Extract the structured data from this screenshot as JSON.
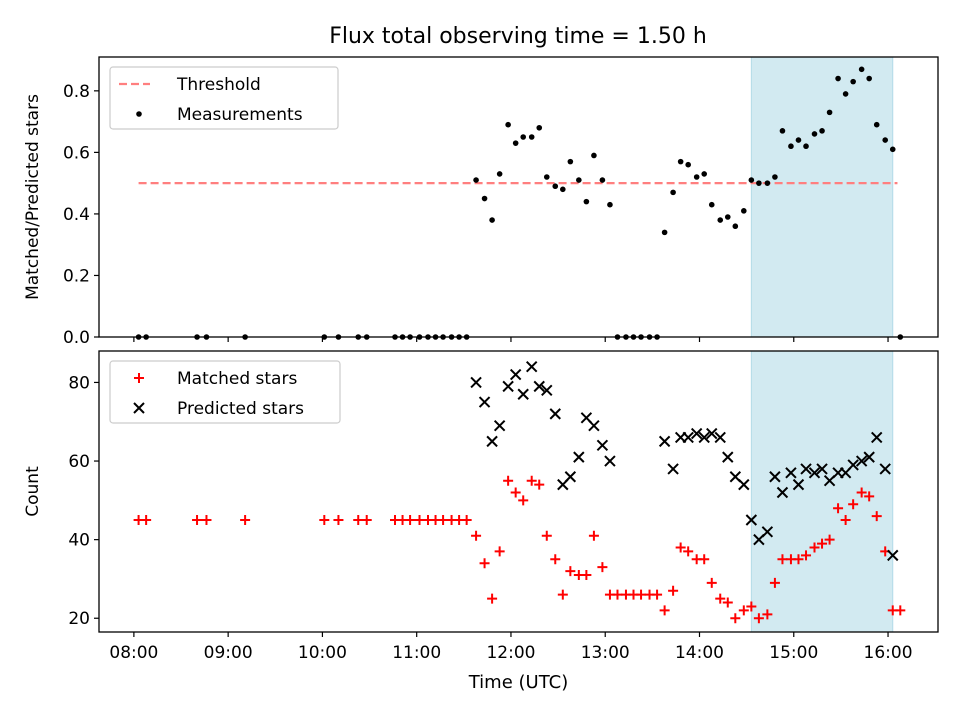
{
  "figure": {
    "title": "Flux total observing time = 1.50 h"
  },
  "colors": {
    "threshold": "#ff7f7f",
    "measurement": "#000000",
    "matched": "#ff0000",
    "predicted": "#000000",
    "highlight": "#add8e6"
  },
  "chart_data": [
    {
      "type": "scatter",
      "ylabel": "Matched/Predicted stars",
      "xlim": [
        7.63,
        16.53
      ],
      "ylim": [
        0,
        0.91
      ],
      "y_ticks": [
        0.0,
        0.2,
        0.4,
        0.6,
        0.8
      ],
      "x_tick_hours": [
        8,
        9,
        10,
        11,
        12,
        13,
        14,
        15,
        16
      ],
      "show_x_tick_labels": false,
      "highlight_range": [
        14.55,
        16.05
      ],
      "legend": {
        "placement": "top-left",
        "entries": [
          "Threshold",
          "Measurements"
        ]
      },
      "series": [
        {
          "name": "Threshold",
          "style": "dashed-line",
          "x": [
            8.05,
            16.1
          ],
          "y": [
            0.5,
            0.5
          ]
        },
        {
          "name": "Measurements",
          "style": "dot",
          "x": [
            8.05,
            8.13,
            8.67,
            8.77,
            9.18,
            10.02,
            10.17,
            10.38,
            10.47,
            10.77,
            10.85,
            10.93,
            11.03,
            11.12,
            11.2,
            11.28,
            11.37,
            11.45,
            11.53,
            11.63,
            11.72,
            11.8,
            11.88,
            11.97,
            12.05,
            12.13,
            12.22,
            12.3,
            12.38,
            12.47,
            12.55,
            12.63,
            12.72,
            12.8,
            12.88,
            12.97,
            13.05,
            13.13,
            13.22,
            13.3,
            13.38,
            13.47,
            13.55,
            13.63,
            13.72,
            13.8,
            13.88,
            13.97,
            14.05,
            14.13,
            14.22,
            14.3,
            14.38,
            14.47,
            14.55,
            14.63,
            14.72,
            14.8,
            14.88,
            14.97,
            15.05,
            15.13,
            15.22,
            15.3,
            15.38,
            15.47,
            15.55,
            15.63,
            15.72,
            15.8,
            15.88,
            15.97,
            16.05,
            16.13
          ],
          "y": [
            0,
            0,
            0,
            0,
            0,
            0,
            0,
            0,
            0,
            0,
            0,
            0,
            0,
            0,
            0,
            0,
            0,
            0,
            0,
            0.51,
            0.45,
            0.38,
            0.53,
            0.69,
            0.63,
            0.65,
            0.65,
            0.68,
            0.52,
            0.49,
            0.48,
            0.57,
            0.51,
            0.44,
            0.59,
            0.51,
            0.43,
            0,
            0,
            0,
            0,
            0,
            0,
            0.34,
            0.47,
            0.57,
            0.56,
            0.52,
            0.53,
            0.43,
            0.38,
            0.39,
            0.36,
            0.41,
            0.51,
            0.5,
            0.5,
            0.52,
            0.67,
            0.62,
            0.64,
            0.62,
            0.66,
            0.67,
            0.73,
            0.84,
            0.79,
            0.83,
            0.87,
            0.84,
            0.69,
            0.64,
            0.61,
            0
          ]
        }
      ]
    },
    {
      "type": "scatter",
      "xlabel": "Time (UTC)",
      "ylabel": "Count",
      "xlim": [
        7.63,
        16.53
      ],
      "ylim": [
        16.5,
        88
      ],
      "y_ticks": [
        20,
        40,
        60,
        80
      ],
      "x_tick_hours": [
        8,
        9,
        10,
        11,
        12,
        13,
        14,
        15,
        16
      ],
      "x_tick_labels": [
        "08:00",
        "09:00",
        "10:00",
        "11:00",
        "12:00",
        "13:00",
        "14:00",
        "15:00",
        "16:00"
      ],
      "highlight_range": [
        14.55,
        16.05
      ],
      "legend": {
        "placement": "top-left",
        "entries": [
          "Matched stars",
          "Predicted stars"
        ]
      },
      "series": [
        {
          "name": "Matched stars",
          "marker": "plus",
          "x": [
            8.05,
            8.13,
            8.67,
            8.77,
            9.18,
            10.02,
            10.17,
            10.38,
            10.47,
            10.77,
            10.85,
            10.93,
            11.03,
            11.12,
            11.2,
            11.28,
            11.37,
            11.45,
            11.53,
            11.63,
            11.72,
            11.8,
            11.88,
            11.97,
            12.05,
            12.13,
            12.22,
            12.3,
            12.38,
            12.47,
            12.55,
            12.63,
            12.72,
            12.8,
            12.88,
            12.97,
            13.05,
            13.13,
            13.22,
            13.3,
            13.38,
            13.47,
            13.55,
            13.63,
            13.72,
            13.8,
            13.88,
            13.97,
            14.05,
            14.13,
            14.22,
            14.3,
            14.38,
            14.47,
            14.55,
            14.63,
            14.72,
            14.8,
            14.88,
            14.97,
            15.05,
            15.13,
            15.22,
            15.3,
            15.38,
            15.47,
            15.55,
            15.63,
            15.72,
            15.8,
            15.88,
            15.97,
            16.05,
            16.13
          ],
          "y": [
            45,
            45,
            45,
            45,
            45,
            45,
            45,
            45,
            45,
            45,
            45,
            45,
            45,
            45,
            45,
            45,
            45,
            45,
            45,
            41,
            34,
            25,
            37,
            55,
            52,
            50,
            55,
            54,
            41,
            35,
            26,
            32,
            31,
            31,
            41,
            33,
            26,
            26,
            26,
            26,
            26,
            26,
            26,
            22,
            27,
            38,
            37,
            35,
            35,
            29,
            25,
            24,
            20,
            22,
            23,
            20,
            21,
            29,
            35,
            35,
            35,
            36,
            38,
            39,
            40,
            48,
            45,
            49,
            52,
            51,
            46,
            37,
            22,
            22
          ]
        },
        {
          "name": "Predicted stars",
          "marker": "x",
          "x": [
            11.63,
            11.72,
            11.8,
            11.88,
            11.97,
            12.05,
            12.13,
            12.22,
            12.3,
            12.38,
            12.47,
            12.55,
            12.63,
            12.72,
            12.8,
            12.88,
            12.97,
            13.05,
            13.63,
            13.72,
            13.8,
            13.88,
            13.97,
            14.05,
            14.13,
            14.22,
            14.3,
            14.38,
            14.47,
            14.55,
            14.63,
            14.72,
            14.8,
            14.88,
            14.97,
            15.05,
            15.13,
            15.22,
            15.3,
            15.38,
            15.47,
            15.55,
            15.63,
            15.72,
            15.8,
            15.88,
            15.97,
            16.05
          ],
          "y": [
            80,
            75,
            65,
            69,
            79,
            82,
            77,
            84,
            79,
            78,
            72,
            54,
            56,
            61,
            71,
            69,
            64,
            60,
            65,
            58,
            66,
            66,
            67,
            66,
            67,
            66,
            61,
            56,
            54,
            45,
            40,
            42,
            56,
            52,
            57,
            54,
            58,
            57,
            58,
            55,
            57,
            57,
            59,
            60,
            61,
            66,
            58,
            36
          ]
        }
      ]
    }
  ]
}
